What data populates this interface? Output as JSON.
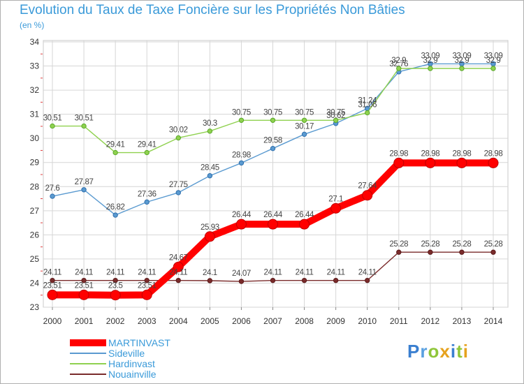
{
  "chart_data": {
    "type": "line",
    "title": "Evolution du Taux de Taxe Foncière sur les Propriétés Non Bâties",
    "subtitle": "(en %)",
    "x": [
      2000,
      2001,
      2002,
      2003,
      2004,
      2005,
      2006,
      2007,
      2008,
      2009,
      2010,
      2011,
      2012,
      2013,
      2014
    ],
    "ylim": [
      23,
      34
    ],
    "yticks": [
      23,
      24,
      25,
      26,
      27,
      28,
      29,
      30,
      31,
      32,
      33,
      34
    ],
    "grid": true,
    "legend_position": "bottom-left",
    "series": [
      {
        "name": "MARTINVAST",
        "color": "#ff0000",
        "values": [
          23.51,
          23.51,
          23.5,
          23.51,
          24.67,
          25.93,
          26.44,
          26.44,
          26.44,
          27.1,
          27.64,
          28.98,
          28.98,
          28.98,
          28.98
        ],
        "labels": [
          "23.51",
          "23.51",
          "23.5",
          "23.51",
          "24.67",
          "25.93",
          "26.44",
          "26.44",
          "26.44",
          "27.1",
          "27.64",
          "28.98",
          "28.98",
          "28.98",
          "28.98"
        ]
      },
      {
        "name": "Sideville",
        "color": "#5a9ad0",
        "values": [
          27.6,
          27.87,
          26.82,
          27.36,
          27.75,
          28.45,
          28.98,
          29.58,
          30.17,
          30.62,
          31.24,
          32.76,
          33.09,
          33.09,
          33.09
        ],
        "labels": [
          "27.6",
          "27.87",
          "26.82",
          "27.36",
          "27.75",
          "28.45",
          "28.98",
          "29.58",
          "30.17",
          "30.62",
          "31.24",
          "32.76",
          "33.09",
          "33.09",
          "33.09"
        ]
      },
      {
        "name": "Hardinvast",
        "color": "#8fd14f",
        "values": [
          30.51,
          30.51,
          29.41,
          29.41,
          30.02,
          30.3,
          30.75,
          30.75,
          30.75,
          30.75,
          31.06,
          32.9,
          32.9,
          32.9,
          32.9
        ],
        "labels": [
          "30.51",
          "30.51",
          "29.41",
          "29.41",
          "30.02",
          "30.3",
          "30.75",
          "30.75",
          "30.75",
          "30.75",
          "31.06",
          "32.9",
          "32.9",
          "32.9",
          "32.9"
        ]
      },
      {
        "name": "Nouainville",
        "color": "#7a2b2b",
        "values": [
          24.11,
          24.11,
          24.11,
          24.11,
          24.11,
          24.1,
          24.07,
          24.11,
          24.11,
          24.11,
          24.11,
          25.28,
          25.28,
          25.28,
          25.28
        ],
        "labels": [
          "24.11",
          "24.11",
          "24.11",
          "24.11",
          "24.11",
          "24.1",
          "24.07",
          "24.11",
          "24.11",
          "24.11",
          "24.11",
          "25.28",
          "25.28",
          "25.28",
          "25.28"
        ]
      }
    ]
  },
  "brand": {
    "letters": [
      "P",
      "r",
      "o",
      "x",
      "i",
      "t",
      "i"
    ],
    "colors": [
      "#3a7fd0",
      "#5aa0e0",
      "#8fc63a",
      "#e6a21e",
      "#3a7fd0",
      "#8fc63a",
      "#e6a21e"
    ]
  }
}
